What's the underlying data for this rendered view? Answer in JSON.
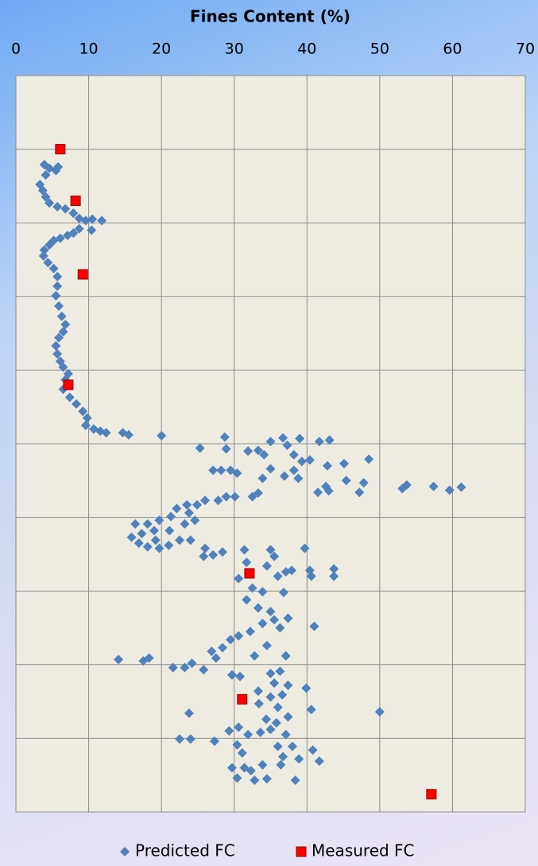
{
  "chart_data": {
    "type": "scatter",
    "title": "Fines Content (%)",
    "xlim": [
      0,
      70
    ],
    "xticks": [
      0,
      10,
      20,
      30,
      40,
      50,
      60,
      70
    ],
    "ylim": [
      0,
      10
    ],
    "yticks": [
      0,
      1,
      2,
      3,
      4,
      5,
      6,
      7,
      8,
      9,
      10
    ],
    "y_inverted": true,
    "ytick_labels": false,
    "grid": true,
    "legend": "bottom",
    "series": [
      {
        "name": "Predicted FC",
        "color": "#4f81bd",
        "marker": "diamond",
        "x": [
          3.9,
          4.6,
          5.5,
          5.8,
          4.1,
          3.3,
          3.7,
          4.1,
          4.6,
          5.7,
          6.8,
          7.9,
          8.7,
          9.6,
          10.5,
          11.8,
          10.4,
          8.7,
          7.9,
          7.1,
          6.1,
          5.2,
          4.6,
          3.9,
          3.8,
          4.4,
          5.2,
          5.7,
          5.7,
          5.5,
          5.9,
          6.3,
          6.8,
          6.5,
          5.9,
          5.5,
          5.7,
          6.1,
          6.5,
          7.2,
          6.8,
          6.5,
          7.4,
          8.3,
          9.2,
          9.8,
          9.6,
          10.7,
          11.6,
          12.4,
          14.7,
          15.5,
          20.0,
          28.7,
          28.9,
          25.3,
          31.9,
          33.3,
          34.1,
          35.0,
          36.7,
          37.3,
          39.0,
          41.7,
          43.1,
          38.2,
          39.3,
          40.4,
          42.8,
          45.1,
          48.5,
          35.0,
          38.2,
          29.5,
          27.1,
          28.2,
          30.4,
          33.9,
          36.9,
          38.8,
          42.6,
          45.4,
          47.8,
          47.2,
          53.1,
          53.7,
          57.4,
          59.6,
          61.2,
          41.5,
          43.0,
          32.5,
          33.3,
          30.1,
          28.9,
          27.8,
          26.0,
          24.9,
          23.5,
          22.1,
          21.3,
          23.8,
          24.6,
          23.2,
          16.4,
          18.1,
          19.7,
          19.0,
          21.1,
          17.3,
          15.9,
          16.9,
          19.2,
          21.0,
          22.5,
          24.0,
          19.7,
          18.1,
          26.0,
          25.8,
          27.1,
          28.4,
          31.4,
          35.0,
          39.7,
          31.7,
          35.5,
          34.5,
          37.1,
          36.0,
          37.9,
          40.4,
          43.7,
          43.7,
          40.6,
          30.6,
          32.5,
          33.9,
          36.8,
          31.7,
          33.3,
          35.0,
          37.4,
          35.5,
          33.9,
          36.3,
          41.0,
          32.2,
          30.6,
          29.5,
          28.4,
          26.9,
          27.5,
          32.8,
          34.5,
          37.1,
          14.1,
          17.5,
          18.3,
          21.6,
          23.2,
          24.2,
          25.8,
          29.7,
          30.8,
          35.0,
          36.3,
          35.5,
          37.4,
          39.9,
          33.3,
          35.0,
          36.6,
          33.4,
          36.0,
          40.6,
          50.0,
          23.8,
          34.4,
          35.8,
          37.4,
          35.0,
          30.6,
          29.3,
          31.9,
          33.6,
          37.1,
          22.5,
          24.0,
          27.3,
          30.4,
          36.0,
          38.0,
          40.8,
          31.1,
          36.7,
          38.9,
          41.7,
          36.4,
          29.7,
          31.4,
          32.3,
          33.9,
          30.4,
          32.8,
          34.5,
          38.4
        ],
        "values": [
          1.21,
          1.26,
          1.29,
          1.24,
          1.35,
          1.48,
          1.56,
          1.65,
          1.73,
          1.78,
          1.81,
          1.87,
          1.94,
          1.97,
          1.95,
          1.97,
          2.1,
          2.08,
          2.14,
          2.17,
          2.21,
          2.24,
          2.3,
          2.37,
          2.45,
          2.54,
          2.62,
          2.73,
          2.86,
          2.99,
          3.13,
          3.27,
          3.38,
          3.48,
          3.56,
          3.67,
          3.78,
          3.88,
          3.96,
          4.05,
          4.13,
          4.26,
          4.37,
          4.46,
          4.56,
          4.65,
          4.75,
          4.8,
          4.83,
          4.85,
          4.85,
          4.88,
          4.89,
          4.91,
          5.07,
          5.06,
          5.1,
          5.09,
          5.15,
          4.97,
          4.92,
          5.02,
          4.93,
          4.97,
          4.95,
          5.15,
          5.24,
          5.22,
          5.3,
          5.27,
          5.21,
          5.34,
          5.36,
          5.36,
          5.36,
          5.36,
          5.4,
          5.47,
          5.44,
          5.47,
          5.58,
          5.5,
          5.53,
          5.66,
          5.61,
          5.56,
          5.58,
          5.63,
          5.59,
          5.66,
          5.64,
          5.72,
          5.67,
          5.72,
          5.72,
          5.77,
          5.77,
          5.83,
          5.83,
          5.88,
          5.99,
          5.94,
          6.04,
          6.09,
          6.09,
          6.09,
          6.04,
          6.18,
          6.18,
          6.22,
          6.27,
          6.35,
          6.31,
          6.38,
          6.31,
          6.31,
          6.42,
          6.4,
          6.42,
          6.53,
          6.51,
          6.47,
          6.44,
          6.44,
          6.42,
          6.61,
          6.53,
          6.66,
          6.74,
          6.8,
          6.72,
          6.72,
          6.7,
          6.8,
          6.8,
          6.83,
          6.96,
          7.01,
          7.02,
          7.12,
          7.23,
          7.28,
          7.37,
          7.39,
          7.44,
          7.5,
          7.48,
          7.55,
          7.61,
          7.66,
          7.77,
          7.82,
          7.91,
          7.88,
          7.74,
          7.88,
          7.93,
          7.95,
          7.91,
          8.04,
          8.04,
          7.98,
          8.07,
          8.14,
          8.16,
          8.12,
          8.09,
          8.25,
          8.28,
          8.32,
          8.36,
          8.44,
          8.41,
          8.53,
          8.58,
          8.61,
          8.64,
          8.66,
          8.74,
          8.79,
          8.71,
          8.88,
          8.85,
          8.9,
          8.95,
          8.92,
          8.95,
          9.01,
          9.01,
          9.04,
          9.09,
          9.11,
          9.11,
          9.16,
          9.2,
          9.25,
          9.28,
          9.31,
          9.36,
          9.4,
          9.4,
          9.44,
          9.36,
          9.54,
          9.57,
          9.55,
          9.57
        ]
      },
      {
        "name": "Measured FC",
        "color": "#ff0000",
        "marker": "square",
        "x": [
          6.1,
          8.2,
          9.2,
          7.2,
          32.1,
          31.1,
          57.1
        ],
        "values": [
          1.0,
          1.7,
          2.7,
          4.2,
          6.76,
          8.47,
          9.76
        ]
      }
    ]
  }
}
